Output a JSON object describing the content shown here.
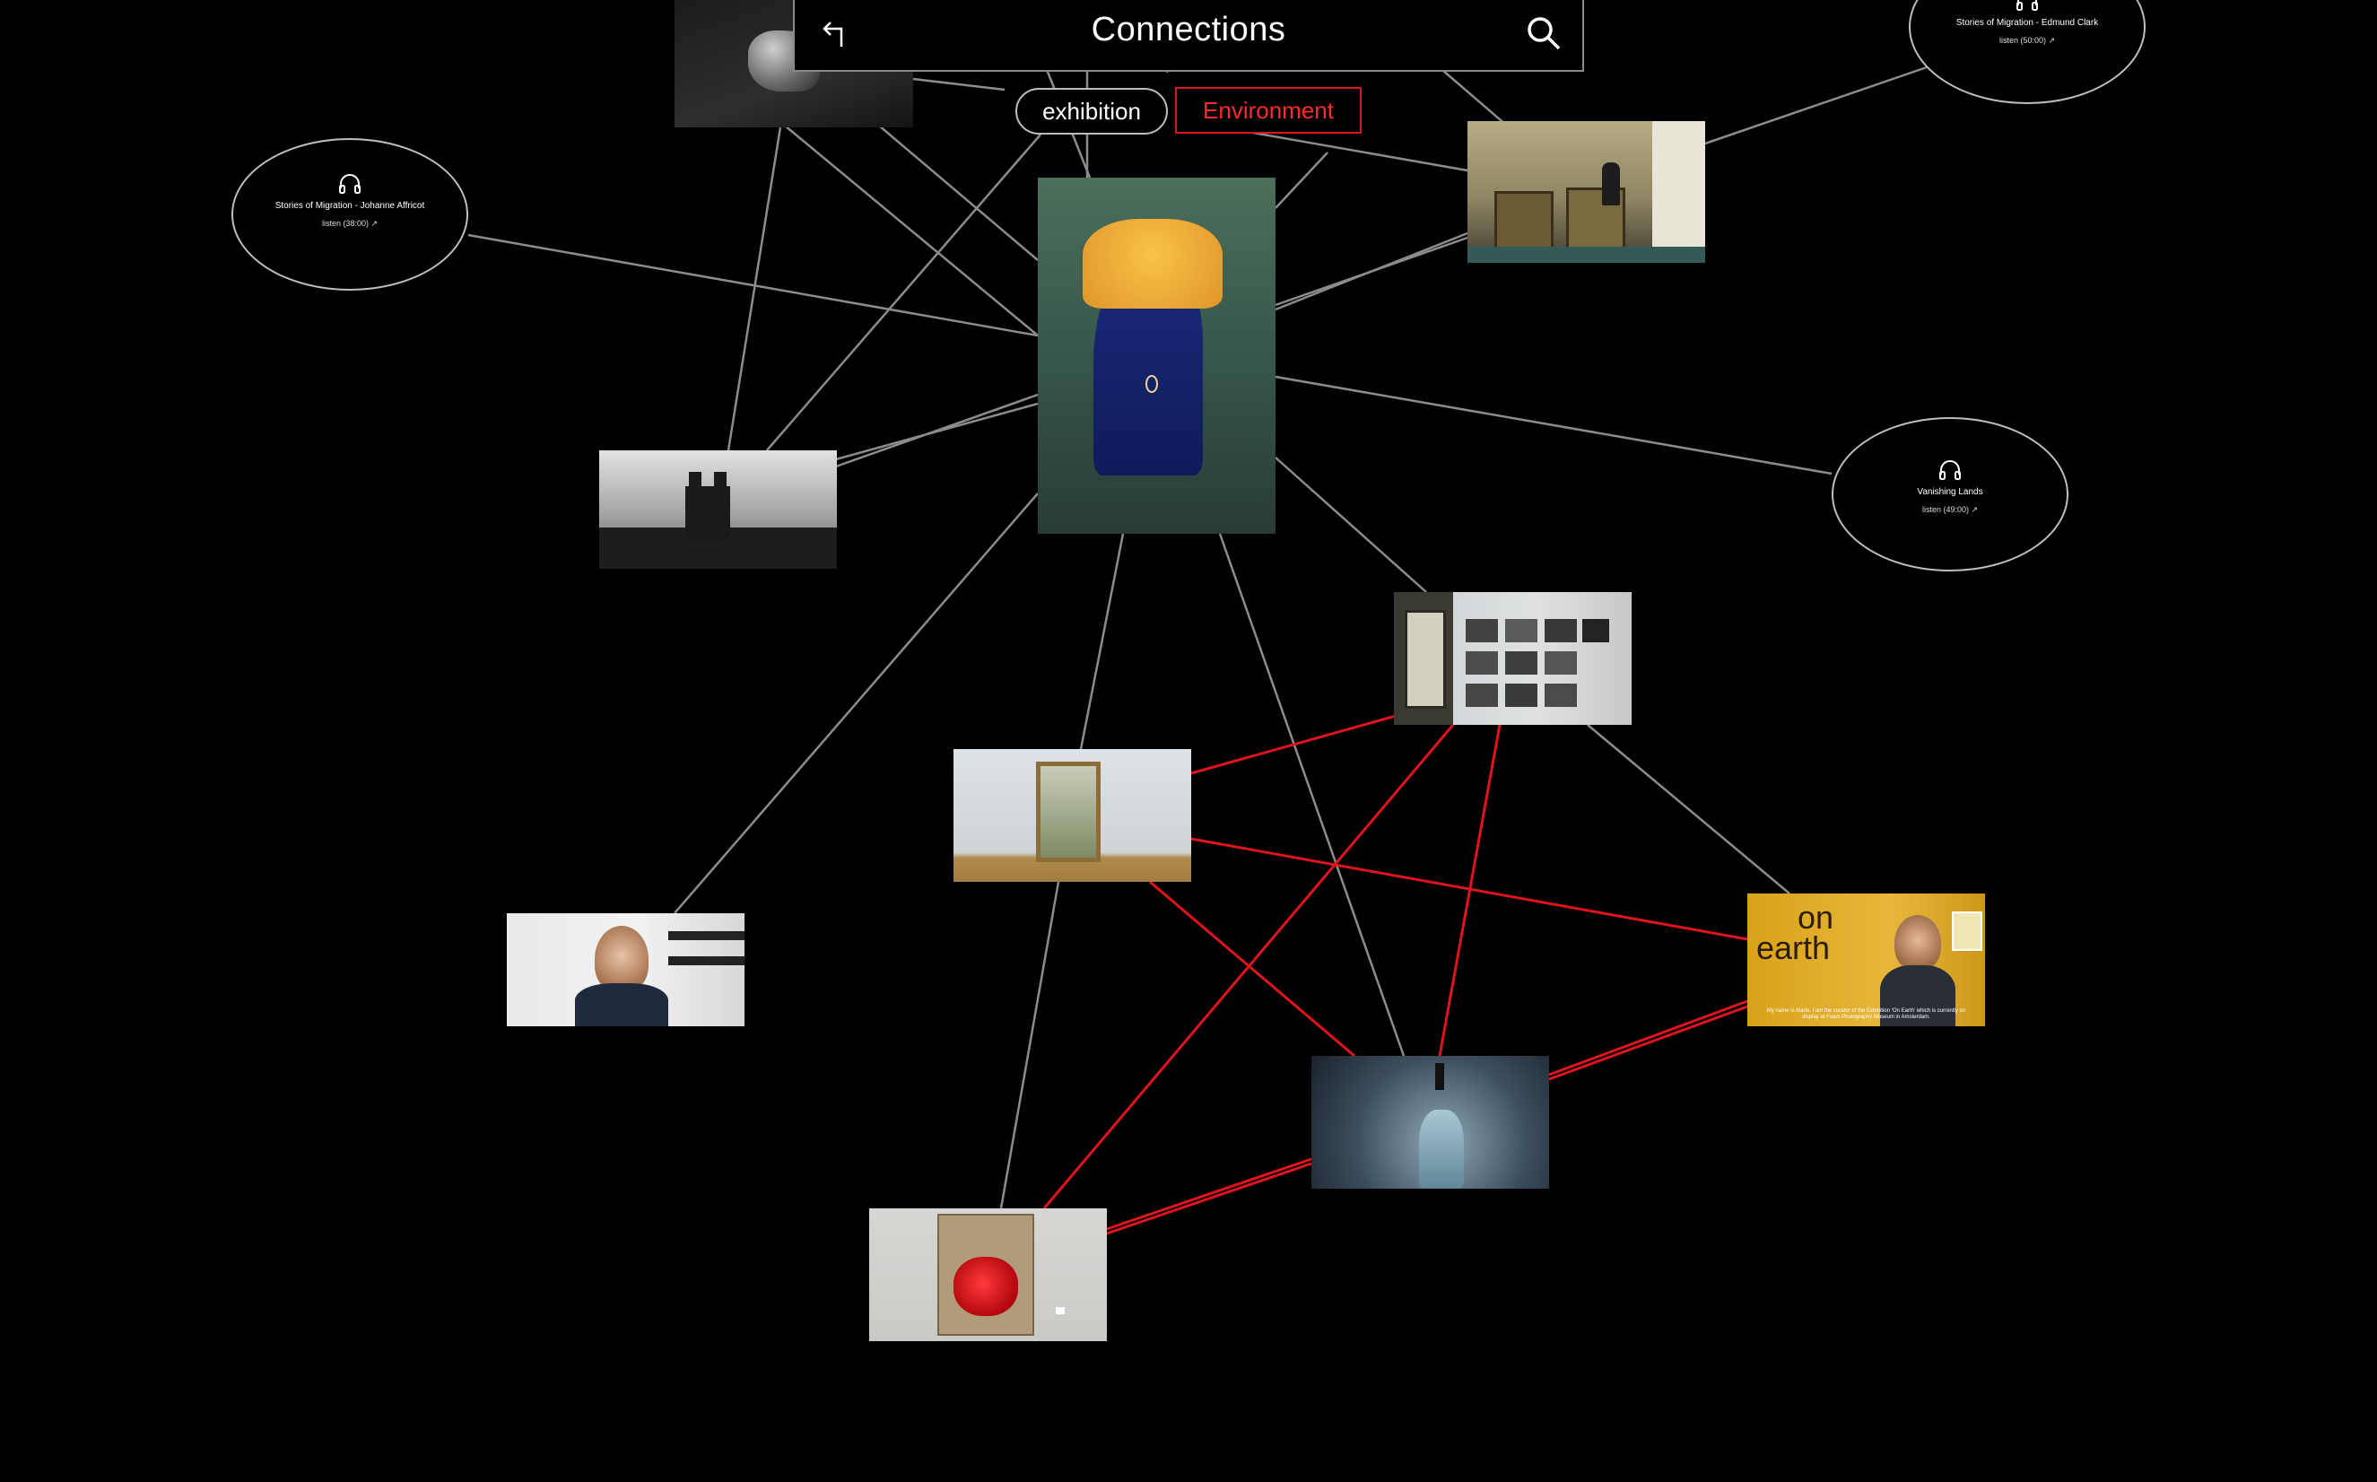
{
  "header": {
    "title": "Connections",
    "back_icon": "back-arrow-icon",
    "search_icon": "search-icon"
  },
  "tags": [
    {
      "label": "exhibition",
      "active": false
    },
    {
      "label": "Environment",
      "active": true
    }
  ],
  "audio_items": [
    {
      "title": "Stories of Migration - Johanne Affricot",
      "listen": "listen (38:00) ↗"
    },
    {
      "title": "Stories of Migration - Edmund Clark",
      "listen": "listen (50:00) ↗"
    },
    {
      "title": "Vanishing Lands",
      "listen": "listen (49:00) ↗"
    }
  ],
  "overlay_text": {
    "on_earth_line1": "on",
    "on_earth_line2": "earth",
    "video_caption": "My name is Marie. I am the curator of the Exhibition ‘On Earth’ which is currently on display at Foam Photography Museum in Amsterdam."
  },
  "colors": {
    "background": "#000000",
    "edge_default": "#8c8c8c",
    "edge_highlight": "#e0141e",
    "accent": "#ff2a2a"
  }
}
